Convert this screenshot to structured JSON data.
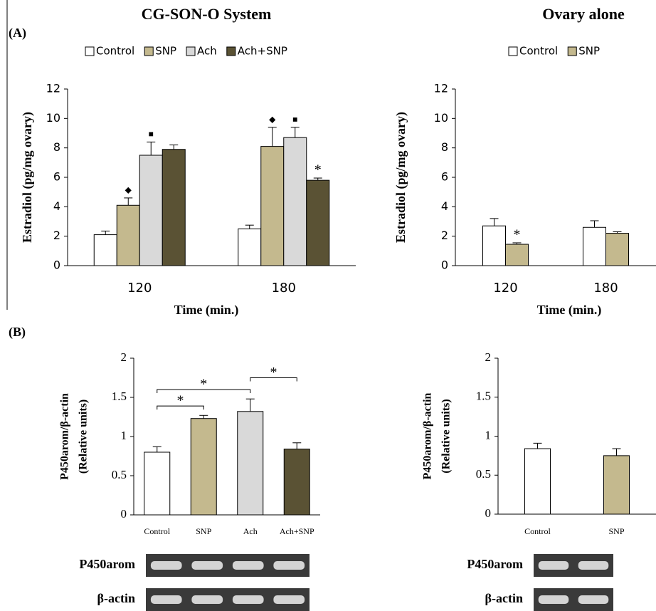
{
  "panels": [
    "(A)",
    "(B)"
  ],
  "chart_data": [
    {
      "type": "bar",
      "title": "CG-SON-O System",
      "ylabel": "Estradiol (pg/mg ovary)",
      "xlabel": "Time (min.)",
      "categories": [
        "120",
        "180"
      ],
      "series": [
        {
          "name": "Control",
          "color": "#ffffff",
          "values": [
            2.1,
            2.5
          ],
          "errors": [
            0.25,
            0.25
          ]
        },
        {
          "name": "SNP",
          "color": "#c4b98e",
          "values": [
            4.1,
            8.1
          ],
          "errors": [
            0.5,
            1.3
          ]
        },
        {
          "name": "Ach",
          "color": "#d9d9d9",
          "values": [
            7.5,
            8.7
          ],
          "errors": [
            0.9,
            0.7
          ]
        },
        {
          "name": "Ach+SNP",
          "color": "#5a5234",
          "values": [
            7.9,
            5.8
          ],
          "errors": [
            0.3,
            0.15
          ]
        }
      ],
      "annotations": [
        {
          "text": "◆",
          "series": "SNP",
          "category": "120",
          "color": "#000000"
        },
        {
          "text": "■",
          "series": "Ach",
          "category": "120",
          "color": "#000000"
        },
        {
          "text": "◆",
          "series": "SNP",
          "category": "180",
          "color": "#000000"
        },
        {
          "text": "■",
          "series": "Ach",
          "category": "180",
          "color": "#000000"
        },
        {
          "text": "*",
          "series": "Ach+SNP",
          "category": "180",
          "color": "#1f3a93"
        }
      ],
      "ylim": [
        0,
        12
      ],
      "yticks": [
        0,
        2,
        4,
        6,
        8,
        10,
        12
      ],
      "legend": "top"
    },
    {
      "type": "bar",
      "title": "Ovary alone",
      "ylabel": "Estradiol (pg/mg ovary)",
      "xlabel": "Time (min.)",
      "categories": [
        "120",
        "180"
      ],
      "series": [
        {
          "name": "Control",
          "color": "#ffffff",
          "values": [
            2.7,
            2.6
          ],
          "errors": [
            0.5,
            0.45
          ]
        },
        {
          "name": "SNP",
          "color": "#c4b98e",
          "values": [
            1.45,
            2.2
          ],
          "errors": [
            0.1,
            0.1
          ]
        }
      ],
      "annotations": [
        {
          "text": "*",
          "series": "SNP",
          "category": "120",
          "color": "#1f3a93"
        }
      ],
      "ylim": [
        0,
        12
      ],
      "yticks": [
        0,
        2,
        4,
        6,
        8,
        10,
        12
      ],
      "legend": "top"
    },
    {
      "type": "bar",
      "ylabel": [
        "P450arom/β-actin",
        "(Relative units)"
      ],
      "categories": [
        "Control",
        "SNP",
        "Ach",
        "Ach+SNP"
      ],
      "values": [
        0.8,
        1.23,
        1.32,
        0.84
      ],
      "errors": [
        0.07,
        0.04,
        0.16,
        0.08
      ],
      "colors": [
        "#ffffff",
        "#c4b98e",
        "#d9d9d9",
        "#5a5234"
      ],
      "comparisons": [
        {
          "from": "Control",
          "to": "SNP",
          "text": "*"
        },
        {
          "from": "Control",
          "to": "Ach",
          "text": "*"
        },
        {
          "from": "Ach",
          "to": "Ach+SNP",
          "text": "*"
        }
      ],
      "ylim": [
        0,
        2
      ],
      "yticks": [
        0,
        0.5,
        1,
        1.5,
        2
      ],
      "blots": [
        "P450arom",
        "β-actin"
      ]
    },
    {
      "type": "bar",
      "ylabel": [
        "P450arom/β-actin",
        "(Relative units)"
      ],
      "categories": [
        "Control",
        "SNP"
      ],
      "values": [
        0.84,
        0.75
      ],
      "errors": [
        0.07,
        0.09
      ],
      "colors": [
        "#ffffff",
        "#c4b98e"
      ],
      "ylim": [
        0,
        2
      ],
      "yticks": [
        0,
        0.5,
        1,
        1.5,
        2
      ],
      "blots": [
        "P450arom",
        "β-actin"
      ]
    }
  ]
}
